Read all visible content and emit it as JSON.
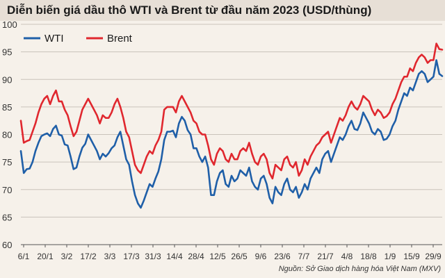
{
  "title": "Diễn biến giá dầu thô WTI và Brent từ đầu năm 2023 (USD/thùng)",
  "source": "Nguồn: Sở Giao dịch hàng hóa Việt Nam (MXV)",
  "colors": {
    "WTI": "#1f5fa8",
    "Brent": "#e0272e",
    "grid": "#c9c2ba",
    "background": "#f6f1ea"
  },
  "chart_data": {
    "type": "line",
    "title": "Diễn biến giá dầu thô WTI và Brent từ đầu năm 2023 (USD/thùng)",
    "xlabel": "",
    "ylabel": "",
    "ylim": [
      60,
      100
    ],
    "yticks": [
      60,
      65,
      70,
      75,
      80,
      85,
      90,
      95,
      100
    ],
    "xticks": [
      "6/1",
      "20/1",
      "3/2",
      "17/2",
      "3/3",
      "17/3",
      "31/3",
      "14/4",
      "28/4",
      "12/5",
      "26/5",
      "9/6",
      "23/6",
      "7/7",
      "21/7",
      "4/8",
      "18/8",
      "1/9",
      "15/9",
      "29/9"
    ],
    "grid": "horizontal",
    "legend": "top-left",
    "series": [
      {
        "name": "WTI",
        "values": [
          [
            0,
            77.0
          ],
          [
            1,
            73.0
          ],
          [
            2,
            73.7
          ],
          [
            3,
            73.8
          ],
          [
            4,
            75.0
          ],
          [
            5,
            77.0
          ],
          [
            6,
            78.5
          ],
          [
            7,
            79.7
          ],
          [
            8,
            80.0
          ],
          [
            9,
            80.2
          ],
          [
            10,
            79.7
          ],
          [
            11,
            81.0
          ],
          [
            12,
            81.6
          ],
          [
            13,
            80.0
          ],
          [
            14,
            79.8
          ],
          [
            15,
            78.2
          ],
          [
            16,
            78.0
          ],
          [
            17,
            76.0
          ],
          [
            18,
            73.7
          ],
          [
            19,
            74.0
          ],
          [
            20,
            76.0
          ],
          [
            21,
            77.6
          ],
          [
            22,
            78.3
          ],
          [
            23,
            80.0
          ],
          [
            24,
            79.0
          ],
          [
            25,
            78.0
          ],
          [
            26,
            77.0
          ],
          [
            27,
            75.5
          ],
          [
            28,
            76.5
          ],
          [
            29,
            76.0
          ],
          [
            30,
            76.6
          ],
          [
            31,
            77.5
          ],
          [
            32,
            78.0
          ],
          [
            33,
            79.5
          ],
          [
            34,
            80.5
          ],
          [
            35,
            78.0
          ],
          [
            36,
            75.5
          ],
          [
            37,
            74.5
          ],
          [
            38,
            71.5
          ],
          [
            39,
            69.0
          ],
          [
            40,
            67.5
          ],
          [
            41,
            66.7
          ],
          [
            42,
            68.0
          ],
          [
            43,
            69.5
          ],
          [
            44,
            71.0
          ],
          [
            45,
            70.5
          ],
          [
            46,
            72.0
          ],
          [
            47,
            73.3
          ],
          [
            48,
            75.5
          ],
          [
            49,
            79.0
          ],
          [
            50,
            80.5
          ],
          [
            51,
            80.5
          ],
          [
            52,
            80.7
          ],
          [
            53,
            79.5
          ],
          [
            54,
            82.0
          ],
          [
            55,
            83.2
          ],
          [
            56,
            82.5
          ],
          [
            57,
            80.8
          ],
          [
            58,
            80.0
          ],
          [
            59,
            77.5
          ],
          [
            60,
            77.5
          ],
          [
            61,
            76.0
          ],
          [
            62,
            75.0
          ],
          [
            63,
            76.0
          ],
          [
            64,
            74.0
          ],
          [
            65,
            69.0
          ],
          [
            66,
            69.0
          ],
          [
            67,
            71.5
          ],
          [
            68,
            73.0
          ],
          [
            69,
            73.5
          ],
          [
            70,
            71.0
          ],
          [
            71,
            70.5
          ],
          [
            72,
            72.5
          ],
          [
            73,
            71.5
          ],
          [
            74,
            72.0
          ],
          [
            75,
            73.5
          ],
          [
            76,
            73.0
          ],
          [
            77,
            72.5
          ],
          [
            78,
            74.0
          ],
          [
            79,
            71.5
          ],
          [
            80,
            70.5
          ],
          [
            81,
            70.0
          ],
          [
            82,
            72.0
          ],
          [
            83,
            72.5
          ],
          [
            84,
            71.0
          ],
          [
            85,
            68.5
          ],
          [
            86,
            67.5
          ],
          [
            87,
            70.5
          ],
          [
            88,
            69.5
          ],
          [
            89,
            69.0
          ],
          [
            90,
            71.0
          ],
          [
            91,
            72.0
          ],
          [
            92,
            70.0
          ],
          [
            93,
            69.5
          ],
          [
            94,
            70.5
          ],
          [
            95,
            68.5
          ],
          [
            96,
            69.5
          ],
          [
            97,
            71.0
          ],
          [
            98,
            70.0
          ],
          [
            99,
            72.0
          ],
          [
            100,
            73.0
          ],
          [
            101,
            74.0
          ],
          [
            102,
            73.0
          ],
          [
            103,
            75.5
          ],
          [
            104,
            76.5
          ],
          [
            105,
            77.0
          ],
          [
            106,
            75.0
          ],
          [
            107,
            76.5
          ],
          [
            108,
            78.0
          ],
          [
            109,
            79.5
          ],
          [
            110,
            79.0
          ],
          [
            111,
            80.0
          ],
          [
            112,
            81.5
          ],
          [
            113,
            82.5
          ],
          [
            114,
            81.0
          ],
          [
            115,
            80.8
          ],
          [
            116,
            82.0
          ],
          [
            117,
            84.0
          ],
          [
            118,
            83.0
          ],
          [
            119,
            82.0
          ],
          [
            120,
            80.5
          ],
          [
            121,
            80.0
          ],
          [
            122,
            81.0
          ],
          [
            123,
            80.5
          ],
          [
            124,
            79.0
          ],
          [
            125,
            79.2
          ],
          [
            126,
            80.0
          ],
          [
            127,
            81.5
          ],
          [
            128,
            82.5
          ],
          [
            129,
            84.5
          ],
          [
            130,
            86.0
          ],
          [
            131,
            87.5
          ],
          [
            132,
            87.0
          ],
          [
            133,
            88.5
          ],
          [
            134,
            88.0
          ],
          [
            135,
            89.5
          ],
          [
            136,
            91.0
          ],
          [
            137,
            91.5
          ],
          [
            138,
            91.0
          ],
          [
            139,
            89.5
          ],
          [
            140,
            90.0
          ],
          [
            141,
            90.5
          ],
          [
            142,
            93.5
          ],
          [
            143,
            91.0
          ],
          [
            144,
            90.6
          ]
        ]
      },
      {
        "name": "Brent",
        "values": [
          [
            0,
            82.5
          ],
          [
            1,
            78.5
          ],
          [
            2,
            78.8
          ],
          [
            3,
            79.0
          ],
          [
            4,
            80.5
          ],
          [
            5,
            82.0
          ],
          [
            6,
            84.0
          ],
          [
            7,
            85.5
          ],
          [
            8,
            86.5
          ],
          [
            9,
            87.0
          ],
          [
            10,
            85.5
          ],
          [
            11,
            87.0
          ],
          [
            12,
            88.0
          ],
          [
            13,
            86.0
          ],
          [
            14,
            86.0
          ],
          [
            15,
            84.5
          ],
          [
            16,
            83.5
          ],
          [
            17,
            81.5
          ],
          [
            18,
            79.7
          ],
          [
            19,
            80.5
          ],
          [
            20,
            82.5
          ],
          [
            21,
            84.5
          ],
          [
            22,
            85.5
          ],
          [
            23,
            86.5
          ],
          [
            24,
            85.5
          ],
          [
            25,
            84.5
          ],
          [
            26,
            83.5
          ],
          [
            27,
            82.0
          ],
          [
            28,
            83.5
          ],
          [
            29,
            83.0
          ],
          [
            30,
            83.0
          ],
          [
            31,
            84.0
          ],
          [
            32,
            85.5
          ],
          [
            33,
            86.5
          ],
          [
            34,
            85.0
          ],
          [
            35,
            83.0
          ],
          [
            36,
            80.5
          ],
          [
            37,
            79.5
          ],
          [
            38,
            77.0
          ],
          [
            39,
            74.5
          ],
          [
            40,
            73.5
          ],
          [
            41,
            73.0
          ],
          [
            42,
            74.5
          ],
          [
            43,
            76.0
          ],
          [
            44,
            77.0
          ],
          [
            45,
            76.5
          ],
          [
            46,
            78.0
          ],
          [
            47,
            79.0
          ],
          [
            48,
            80.5
          ],
          [
            49,
            84.5
          ],
          [
            50,
            85.0
          ],
          [
            51,
            85.0
          ],
          [
            52,
            85.0
          ],
          [
            53,
            84.0
          ],
          [
            54,
            86.0
          ],
          [
            55,
            87.0
          ],
          [
            56,
            86.0
          ],
          [
            57,
            85.0
          ],
          [
            58,
            84.0
          ],
          [
            59,
            82.5
          ],
          [
            60,
            82.0
          ],
          [
            61,
            80.5
          ],
          [
            62,
            80.0
          ],
          [
            63,
            80.0
          ],
          [
            64,
            78.0
          ],
          [
            65,
            75.5
          ],
          [
            66,
            74.5
          ],
          [
            67,
            76.5
          ],
          [
            68,
            77.5
          ],
          [
            69,
            77.0
          ],
          [
            70,
            75.5
          ],
          [
            71,
            75.0
          ],
          [
            72,
            76.5
          ],
          [
            73,
            75.5
          ],
          [
            74,
            75.5
          ],
          [
            75,
            77.0
          ],
          [
            76,
            77.5
          ],
          [
            77,
            77.0
          ],
          [
            78,
            78.5
          ],
          [
            79,
            76.5
          ],
          [
            80,
            75.0
          ],
          [
            81,
            74.5
          ],
          [
            82,
            76.0
          ],
          [
            83,
            76.5
          ],
          [
            84,
            75.5
          ],
          [
            85,
            73.0
          ],
          [
            86,
            72.0
          ],
          [
            87,
            74.5
          ],
          [
            88,
            74.0
          ],
          [
            89,
            73.5
          ],
          [
            90,
            75.5
          ],
          [
            91,
            76.0
          ],
          [
            92,
            74.5
          ],
          [
            93,
            74.0
          ],
          [
            94,
            75.0
          ],
          [
            95,
            72.5
          ],
          [
            96,
            73.5
          ],
          [
            97,
            75.5
          ],
          [
            98,
            74.5
          ],
          [
            99,
            76.0
          ],
          [
            100,
            77.0
          ],
          [
            101,
            78.0
          ],
          [
            102,
            78.5
          ],
          [
            103,
            79.5
          ],
          [
            104,
            80.0
          ],
          [
            105,
            80.5
          ],
          [
            106,
            78.5
          ],
          [
            107,
            80.0
          ],
          [
            108,
            81.5
          ],
          [
            109,
            83.0
          ],
          [
            110,
            82.5
          ],
          [
            111,
            83.5
          ],
          [
            112,
            85.0
          ],
          [
            113,
            86.0
          ],
          [
            114,
            85.0
          ],
          [
            115,
            84.5
          ],
          [
            116,
            85.5
          ],
          [
            117,
            87.0
          ],
          [
            118,
            86.5
          ],
          [
            119,
            86.0
          ],
          [
            120,
            84.5
          ],
          [
            121,
            83.5
          ],
          [
            122,
            84.5
          ],
          [
            123,
            84.0
          ],
          [
            124,
            83.0
          ],
          [
            125,
            83.3
          ],
          [
            126,
            84.0
          ],
          [
            127,
            85.5
          ],
          [
            128,
            86.5
          ],
          [
            129,
            88.0
          ],
          [
            130,
            89.5
          ],
          [
            131,
            90.5
          ],
          [
            132,
            90.5
          ],
          [
            133,
            92.0
          ],
          [
            134,
            91.5
          ],
          [
            135,
            93.0
          ],
          [
            136,
            94.0
          ],
          [
            137,
            94.5
          ],
          [
            138,
            94.0
          ],
          [
            139,
            93.0
          ],
          [
            140,
            93.5
          ],
          [
            141,
            93.5
          ],
          [
            142,
            96.5
          ],
          [
            143,
            95.5
          ],
          [
            144,
            95.4
          ]
        ]
      }
    ]
  }
}
